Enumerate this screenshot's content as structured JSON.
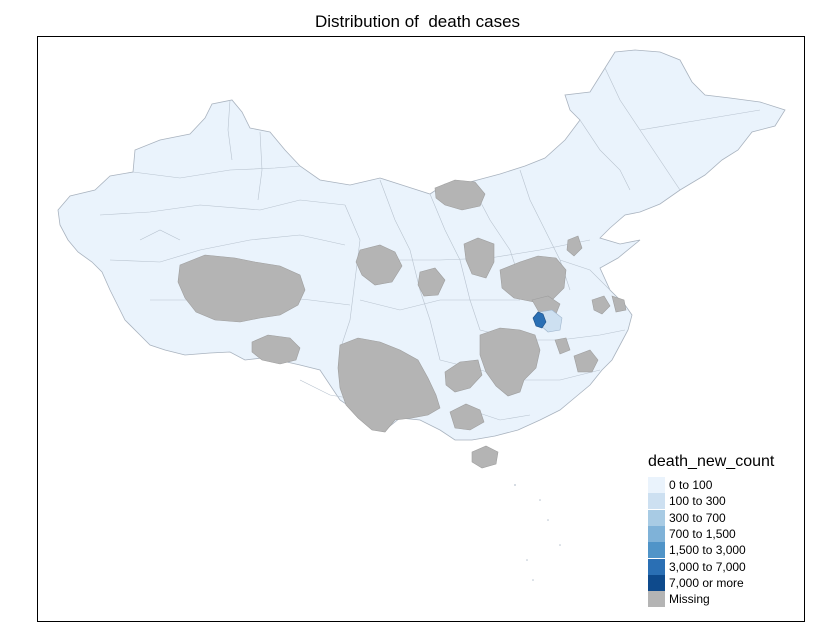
{
  "map": {
    "title": "Distribution of  death cases",
    "legend": {
      "title": "death_new_count",
      "items": [
        {
          "label": "0 to 100",
          "color": "#eaf3fc"
        },
        {
          "label": "100 to 300",
          "color": "#cde0f1"
        },
        {
          "label": "300 to 700",
          "color": "#a8cbe4"
        },
        {
          "label": "700 to 1,500",
          "color": "#7fb2d8"
        },
        {
          "label": "1,500 to 3,000",
          "color": "#5094c8"
        },
        {
          "label": "3,000 to 7,000",
          "color": "#2a6fb4"
        },
        {
          "label": "7,000 or more",
          "color": "#0e4a8c"
        },
        {
          "label": "Missing",
          "color": "#b4b4b4"
        }
      ]
    },
    "colors": {
      "base": "#eaf3fc",
      "missing": "#b4b4b4",
      "border": "#a9b3bf",
      "highlight_dark": "#2a6fb4",
      "highlight_light": "#cde0f1"
    }
  }
}
